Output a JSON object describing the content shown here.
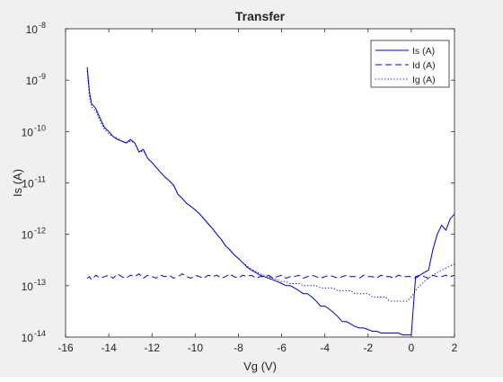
{
  "chart_data": {
    "type": "line",
    "title": "Transfer",
    "xlabel": "Vg (V)",
    "ylabel": "Is (A)",
    "xlim": [
      -16,
      2
    ],
    "ylim": [
      1e-14,
      1e-08
    ],
    "yscale": "log",
    "x_ticks": [
      "-16",
      "-14",
      "-12",
      "-10",
      "-8",
      "-6",
      "-4",
      "-2",
      "0",
      "2"
    ],
    "y_ticks": [
      {
        "base": "10",
        "exp": "-14"
      },
      {
        "base": "10",
        "exp": "-13"
      },
      {
        "base": "10",
        "exp": "-12"
      },
      {
        "base": "10",
        "exp": "-11"
      },
      {
        "base": "10",
        "exp": "-10"
      },
      {
        "base": "10",
        "exp": "-9"
      },
      {
        "base": "10",
        "exp": "-8"
      }
    ],
    "grid": false,
    "legend_position": "top-right",
    "line_color": "#0000cc",
    "series": [
      {
        "name": "Is (A)",
        "style": "solid",
        "x": [
          -15,
          -14.9,
          -14.8,
          -14.6,
          -14.4,
          -14.2,
          -14,
          -13.8,
          -13.6,
          -13.4,
          -13.2,
          -13,
          -12.8,
          -12.6,
          -12.4,
          -12.2,
          -12,
          -11.8,
          -11.6,
          -11.4,
          -11.2,
          -11,
          -10.8,
          -10.6,
          -10.4,
          -10.2,
          -10,
          -9.8,
          -9.6,
          -9.4,
          -9.2,
          -9,
          -8.8,
          -8.6,
          -8.4,
          -8.2,
          -8,
          -7.8,
          -7.6,
          -7.4,
          -7.2,
          -7,
          -6.8,
          -6.6,
          -6.4,
          -6.2,
          -6,
          -5.8,
          -5.6,
          -5.4,
          -5.2,
          -5,
          -4.8,
          -4.6,
          -4.4,
          -4.2,
          -4,
          -3.8,
          -3.6,
          -3.4,
          -3.2,
          -3,
          -2.8,
          -2.6,
          -2.4,
          -2.2,
          -2,
          -1.8,
          -1.6,
          -1.4,
          -1.2,
          -1,
          -0.8,
          -0.6,
          -0.4,
          -0.2,
          0,
          0.2,
          0.4,
          0.6,
          0.8,
          1,
          1.2,
          1.4,
          1.6,
          1.8,
          2
        ],
        "y": [
          1.8e-09,
          6e-10,
          3.5e-10,
          2.8e-10,
          1.8e-10,
          1.2e-10,
          1e-10,
          8e-11,
          7e-11,
          6.5e-11,
          6e-11,
          7e-11,
          6e-11,
          4e-11,
          4.5e-11,
          3e-11,
          2.5e-11,
          2e-11,
          1.6e-11,
          1.3e-11,
          1.1e-11,
          9e-12,
          6e-12,
          5e-12,
          4e-12,
          3.5e-12,
          3e-12,
          2.5e-12,
          2e-12,
          1.6e-12,
          1.3e-12,
          1e-12,
          8e-13,
          6e-13,
          5e-13,
          4e-13,
          3.4e-13,
          2.8e-13,
          2.3e-13,
          2e-13,
          1.8e-13,
          1.6e-13,
          1.5e-13,
          1.4e-13,
          1.3e-13,
          1.2e-13,
          1.1e-13,
          1e-13,
          1e-13,
          9e-14,
          8e-14,
          7e-14,
          7e-14,
          6e-14,
          5e-14,
          4e-14,
          4e-14,
          3.5e-14,
          3e-14,
          2.5e-14,
          2e-14,
          2e-14,
          1.8e-14,
          1.6e-14,
          1.5e-14,
          1.5e-14,
          1.4e-14,
          1.3e-14,
          1.3e-14,
          1.2e-14,
          1.2e-14,
          1.2e-14,
          1.2e-14,
          1.2e-14,
          1.1e-14,
          1.1e-14,
          1.1e-14,
          1.5e-13,
          1.6e-13,
          1.8e-13,
          2e-13,
          5e-13,
          1e-12,
          1.5e-12,
          1.2e-12,
          2e-12,
          2.5e-12
        ]
      },
      {
        "name": "Id (A)",
        "style": "dashed",
        "x": [
          -15,
          -14.9,
          -14.8,
          -14.6,
          -14.4,
          -14.2,
          -14,
          -13.8,
          -13.6,
          -13.4,
          -13.2,
          -13,
          -12.8,
          -12.6,
          -12.4,
          -12.2,
          -12,
          -11.8,
          -11.6,
          -11.4,
          -11.2,
          -11,
          -10.8,
          -10.6,
          -10.4,
          -10.2,
          -10,
          -9.8,
          -9.6,
          -9.4,
          -9.2,
          -9,
          -8.8,
          -8.6,
          -8.4,
          -8.2,
          -8,
          -7.8,
          -7.6,
          -7.4,
          -7.2,
          -7,
          -6.8,
          -6.6,
          -6.4,
          -6.2,
          -6,
          -5.8,
          -5.6,
          -5.4,
          -5.2,
          -5,
          -4.8,
          -4.6,
          -4.4,
          -4.2,
          -4,
          -3.8,
          -3.6,
          -3.4,
          -3.2,
          -3,
          -2.8,
          -2.6,
          -2.4,
          -2.2,
          -2,
          -1.8,
          -1.6,
          -1.4,
          -1.2,
          -1,
          -0.8,
          -0.6,
          -0.4,
          -0.2,
          0,
          0.2,
          0.4,
          0.6,
          0.8,
          1,
          1.2,
          1.4,
          1.6,
          1.8,
          2
        ],
        "y": [
          1.4e-13,
          1.5e-13,
          1.3e-13,
          1.6e-13,
          1.4e-13,
          1.5e-13,
          1.6e-13,
          1.4e-13,
          1.7e-13,
          1.5e-13,
          1.4e-13,
          1.6e-13,
          1.5e-13,
          1.7e-13,
          1.4e-13,
          1.6e-13,
          1.5e-13,
          1.4e-13,
          1.6e-13,
          1.5e-13,
          1.6e-13,
          1.4e-13,
          1.5e-13,
          1.7e-13,
          1.5e-13,
          1.4e-13,
          1.6e-13,
          1.5e-13,
          1.4e-13,
          1.6e-13,
          1.5e-13,
          1.6e-13,
          1.4e-13,
          1.5e-13,
          1.7e-13,
          1.5e-13,
          1.4e-13,
          1.6e-13,
          1.5e-13,
          1.6e-13,
          1.4e-13,
          1.5e-13,
          1.5e-13,
          1.6e-13,
          1.4e-13,
          1.5e-13,
          1.6e-13,
          1.4e-13,
          1.5e-13,
          1.5e-13,
          1.6e-13,
          1.4e-13,
          1.5e-13,
          1.6e-13,
          1.5e-13,
          1.4e-13,
          1.5e-13,
          1.6e-13,
          1.5e-13,
          1.4e-13,
          1.5e-13,
          1.6e-13,
          1.5e-13,
          1.5e-13,
          1.4e-13,
          1.6e-13,
          1.5e-13,
          1.5e-13,
          1.4e-13,
          1.6e-13,
          1.5e-13,
          1.5e-13,
          1.4e-13,
          1.6e-13,
          1.5e-13,
          1.5e-13,
          1.5e-13,
          1.4e-13,
          1.6e-13,
          1.5e-13,
          1.4e-13,
          1.6e-13,
          1.5e-13,
          1.5e-13,
          1.6e-13,
          1.5e-13,
          1.6e-13
        ]
      },
      {
        "name": "Ig (A)",
        "style": "dotted",
        "x": [
          -15,
          -14.9,
          -14.8,
          -14.6,
          -14.4,
          -14.2,
          -14,
          -13.8,
          -13.6,
          -13.4,
          -13.2,
          -13,
          -12.8,
          -12.6,
          -12.4,
          -12.2,
          -12,
          -11.8,
          -11.6,
          -11.4,
          -11.2,
          -11,
          -10.8,
          -10.6,
          -10.4,
          -10.2,
          -10,
          -9.8,
          -9.6,
          -9.4,
          -9.2,
          -9,
          -8.8,
          -8.6,
          -8.4,
          -8.2,
          -8,
          -7.8,
          -7.6,
          -7.4,
          -7.2,
          -7,
          -6.8,
          -6.6,
          -6.4,
          -6.2,
          -6,
          -5.8,
          -5.6,
          -5.4,
          -5.2,
          -5,
          -4.8,
          -4.6,
          -4.4,
          -4.2,
          -4,
          -3.8,
          -3.6,
          -3.4,
          -3.2,
          -3,
          -2.8,
          -2.6,
          -2.4,
          -2.2,
          -2,
          -1.8,
          -1.6,
          -1.4,
          -1.2,
          -1,
          -0.8,
          -0.6,
          -0.4,
          -0.2,
          0,
          0.2,
          0.4,
          0.6,
          0.8,
          1,
          1.2,
          1.4,
          1.6,
          1.8,
          2
        ],
        "y": [
          1.5e-09,
          5e-10,
          3e-10,
          2.5e-10,
          1.6e-10,
          1.1e-10,
          9e-11,
          8e-11,
          7.5e-11,
          6.5e-11,
          6e-11,
          6.5e-11,
          6e-11,
          4e-11,
          4.2e-11,
          3e-11,
          2.5e-11,
          2e-11,
          1.6e-11,
          1.3e-11,
          1.1e-11,
          9e-12,
          6e-12,
          5e-12,
          4e-12,
          3.5e-12,
          3e-12,
          2.5e-12,
          2e-12,
          1.6e-12,
          1.3e-12,
          1e-12,
          8e-13,
          6e-13,
          5e-13,
          4e-13,
          3.4e-13,
          2.8e-13,
          2.4e-13,
          2.1e-13,
          1.9e-13,
          1.7e-13,
          1.6e-13,
          1.5e-13,
          1.4e-13,
          1.3e-13,
          1.2e-13,
          1.2e-13,
          1.1e-13,
          1.1e-13,
          1.1e-13,
          1e-13,
          1e-13,
          1e-13,
          1e-13,
          9e-14,
          9e-14,
          9e-14,
          9e-14,
          8e-14,
          8e-14,
          8e-14,
          8e-14,
          7e-14,
          7e-14,
          7e-14,
          7e-14,
          6e-14,
          6e-14,
          6e-14,
          6e-14,
          5e-14,
          5e-14,
          5e-14,
          5e-14,
          5e-14,
          6e-14,
          8e-14,
          1e-13,
          1.2e-13,
          1.4e-13,
          1.6e-13,
          1.8e-13,
          2e-13,
          2.2e-13,
          2.4e-13,
          2.6e-13
        ]
      }
    ]
  }
}
